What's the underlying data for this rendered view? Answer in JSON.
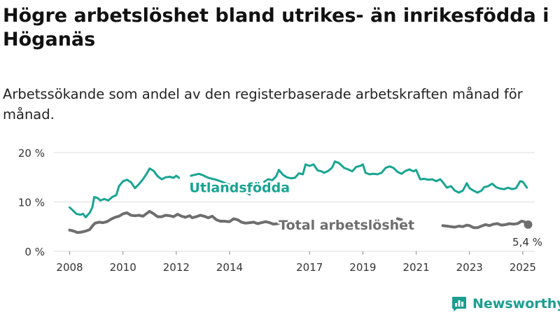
{
  "title": "Högre arbetslöshet bland utrikes- än inrikesfödda i Höganäs",
  "subtitle": "Arbetssökande som andel av den registerbaserade arbetskraften månad för månad.",
  "brand": "Newsworthy",
  "colors": {
    "foreign_born": "#19a493",
    "total": "#6e6e6e",
    "grid": "#dddddd",
    "text": "#333333",
    "brand": "#1b9e8f"
  },
  "chart_data": {
    "type": "line",
    "title": "Högre arbetslöshet bland utrikes- än inrikesfödda i Höganäs",
    "xlabel": "",
    "ylabel": "",
    "xlim": [
      2007.75,
      2025.45
    ],
    "ylim": [
      0,
      20
    ],
    "y_ticks": [
      {
        "value": 0,
        "label": "0 %"
      },
      {
        "value": 10,
        "label": "10 %"
      },
      {
        "value": 20,
        "label": "20 %"
      }
    ],
    "x_ticks": [
      {
        "value": 2008,
        "label": "2008"
      },
      {
        "value": 2010,
        "label": "2010"
      },
      {
        "value": 2012,
        "label": "2012"
      },
      {
        "value": 2014,
        "label": "2014"
      },
      {
        "value": 2017,
        "label": "2017"
      },
      {
        "value": 2019,
        "label": "2019"
      },
      {
        "value": 2021,
        "label": "2021"
      },
      {
        "value": 2023,
        "label": "2023"
      },
      {
        "value": 2025,
        "label": "2025"
      }
    ],
    "grid": true,
    "series": [
      {
        "name": "Utlandsfödda",
        "color": "#19a493",
        "points": [
          [
            2008.0,
            8.9
          ],
          [
            2008.1,
            8.4
          ],
          [
            2008.25,
            7.6
          ],
          [
            2008.4,
            7.4
          ],
          [
            2008.5,
            7.6
          ],
          [
            2008.6,
            6.9
          ],
          [
            2008.75,
            7.8
          ],
          [
            2008.85,
            8.9
          ],
          [
            2008.92,
            11.0
          ],
          [
            2009.05,
            10.8
          ],
          [
            2009.15,
            10.3
          ],
          [
            2009.3,
            10.6
          ],
          [
            2009.45,
            10.3
          ],
          [
            2009.6,
            11.0
          ],
          [
            2009.75,
            11.4
          ],
          [
            2009.85,
            13.2
          ],
          [
            2010.0,
            14.2
          ],
          [
            2010.15,
            14.5
          ],
          [
            2010.3,
            14.0
          ],
          [
            2010.45,
            12.8
          ],
          [
            2010.6,
            13.6
          ],
          [
            2010.75,
            14.6
          ],
          [
            2010.9,
            15.8
          ],
          [
            2011.0,
            16.8
          ],
          [
            2011.15,
            16.3
          ],
          [
            2011.3,
            15.2
          ],
          [
            2011.45,
            14.6
          ],
          [
            2011.6,
            15.0
          ],
          [
            2011.75,
            15.1
          ],
          [
            2011.9,
            14.9
          ],
          [
            2012.0,
            15.3
          ],
          [
            2012.1,
            14.9
          ],
          [
            2012.55,
            15.3
          ],
          [
            2012.7,
            15.5
          ],
          [
            2012.85,
            15.7
          ],
          [
            2013.0,
            15.4
          ],
          [
            2013.2,
            14.9
          ],
          [
            2013.35,
            14.7
          ],
          [
            2013.5,
            14.5
          ],
          [
            2013.65,
            14.2
          ],
          [
            2013.8,
            13.9
          ],
          [
            2014.0,
            13.5
          ],
          [
            2014.2,
            13.2
          ],
          [
            2014.35,
            12.7
          ],
          [
            2014.5,
            12.2
          ],
          [
            2014.65,
            11.9
          ],
          [
            2014.75,
            11.5
          ],
          [
            2015.3,
            14.1
          ],
          [
            2015.45,
            14.6
          ],
          [
            2015.6,
            14.4
          ],
          [
            2015.75,
            15.2
          ],
          [
            2015.85,
            16.5
          ],
          [
            2016.0,
            15.5
          ],
          [
            2016.15,
            15.0
          ],
          [
            2016.3,
            14.8
          ],
          [
            2016.45,
            14.9
          ],
          [
            2016.6,
            15.8
          ],
          [
            2016.75,
            15.6
          ],
          [
            2016.85,
            17.6
          ],
          [
            2017.0,
            17.3
          ],
          [
            2017.15,
            17.6
          ],
          [
            2017.3,
            16.4
          ],
          [
            2017.45,
            16.2
          ],
          [
            2017.55,
            15.9
          ],
          [
            2017.7,
            16.3
          ],
          [
            2017.85,
            17.0
          ],
          [
            2017.95,
            18.2
          ],
          [
            2018.1,
            17.9
          ],
          [
            2018.3,
            16.9
          ],
          [
            2018.45,
            16.6
          ],
          [
            2018.6,
            16.2
          ],
          [
            2018.75,
            17.1
          ],
          [
            2018.9,
            17.3
          ],
          [
            2019.0,
            17.6
          ],
          [
            2019.1,
            15.9
          ],
          [
            2019.25,
            15.6
          ],
          [
            2019.4,
            15.7
          ],
          [
            2019.55,
            15.6
          ],
          [
            2019.7,
            15.9
          ],
          [
            2019.85,
            16.9
          ],
          [
            2020.0,
            17.2
          ],
          [
            2020.15,
            16.9
          ],
          [
            2020.3,
            16.1
          ],
          [
            2020.45,
            15.7
          ],
          [
            2020.6,
            16.3
          ],
          [
            2020.75,
            16.6
          ],
          [
            2020.9,
            16.2
          ],
          [
            2021.0,
            16.5
          ],
          [
            2021.15,
            14.6
          ],
          [
            2021.3,
            14.7
          ],
          [
            2021.45,
            14.5
          ],
          [
            2021.6,
            14.6
          ],
          [
            2021.75,
            14.2
          ],
          [
            2021.9,
            14.6
          ],
          [
            2022.0,
            14.0
          ],
          [
            2022.15,
            12.9
          ],
          [
            2022.3,
            13.2
          ],
          [
            2022.45,
            12.3
          ],
          [
            2022.6,
            11.9
          ],
          [
            2022.75,
            12.3
          ],
          [
            2022.9,
            13.8
          ],
          [
            2023.0,
            12.8
          ],
          [
            2023.15,
            12.3
          ],
          [
            2023.3,
            11.9
          ],
          [
            2023.45,
            12.3
          ],
          [
            2023.55,
            13.0
          ],
          [
            2023.7,
            13.2
          ],
          [
            2023.85,
            13.7
          ],
          [
            2024.0,
            13.0
          ],
          [
            2024.15,
            12.7
          ],
          [
            2024.3,
            12.6
          ],
          [
            2024.45,
            12.9
          ],
          [
            2024.6,
            12.6
          ],
          [
            2024.75,
            12.8
          ],
          [
            2024.9,
            14.2
          ],
          [
            2025.0,
            14.1
          ],
          [
            2025.15,
            12.9
          ]
        ]
      },
      {
        "name": "Total arbetslöshet",
        "color": "#6e6e6e",
        "points": [
          [
            2008.0,
            4.3
          ],
          [
            2008.15,
            4.1
          ],
          [
            2008.3,
            3.8
          ],
          [
            2008.45,
            3.9
          ],
          [
            2008.6,
            4.1
          ],
          [
            2008.75,
            4.4
          ],
          [
            2008.85,
            5.1
          ],
          [
            2008.95,
            5.7
          ],
          [
            2009.1,
            5.9
          ],
          [
            2009.25,
            5.8
          ],
          [
            2009.4,
            6.0
          ],
          [
            2009.55,
            6.5
          ],
          [
            2009.7,
            6.9
          ],
          [
            2009.85,
            7.1
          ],
          [
            2010.0,
            7.6
          ],
          [
            2010.15,
            7.8
          ],
          [
            2010.3,
            7.3
          ],
          [
            2010.45,
            7.2
          ],
          [
            2010.6,
            7.3
          ],
          [
            2010.75,
            7.1
          ],
          [
            2010.9,
            7.7
          ],
          [
            2011.0,
            8.1
          ],
          [
            2011.15,
            7.6
          ],
          [
            2011.3,
            7.0
          ],
          [
            2011.45,
            7.0
          ],
          [
            2011.6,
            7.3
          ],
          [
            2011.75,
            7.2
          ],
          [
            2011.9,
            7.0
          ],
          [
            2012.05,
            7.5
          ],
          [
            2012.2,
            7.1
          ],
          [
            2012.35,
            6.9
          ],
          [
            2012.5,
            7.2
          ],
          [
            2012.6,
            6.8
          ],
          [
            2012.75,
            7.0
          ],
          [
            2012.9,
            7.3
          ],
          [
            2013.05,
            7.1
          ],
          [
            2013.2,
            6.8
          ],
          [
            2013.35,
            7.1
          ],
          [
            2013.5,
            6.4
          ],
          [
            2013.65,
            6.1
          ],
          [
            2013.8,
            6.1
          ],
          [
            2014.0,
            6.0
          ],
          [
            2014.15,
            6.6
          ],
          [
            2014.3,
            6.4
          ],
          [
            2014.45,
            5.9
          ],
          [
            2014.6,
            5.7
          ],
          [
            2014.75,
            5.8
          ],
          [
            2014.9,
            5.9
          ],
          [
            2015.05,
            5.6
          ],
          [
            2015.2,
            5.8
          ],
          [
            2015.35,
            6.0
          ],
          [
            2015.5,
            5.8
          ],
          [
            2015.65,
            5.5
          ],
          [
            2015.8,
            5.6
          ],
          [
            2015.95,
            5.9
          ],
          [
            2016.1,
            6.0
          ],
          [
            2016.25,
            5.7
          ],
          [
            2016.4,
            5.4
          ],
          [
            2016.55,
            5.6
          ],
          [
            2016.75,
            5.7
          ],
          [
            2020.3,
            6.6
          ],
          [
            2020.45,
            6.4
          ],
          [
            2022.0,
            5.2
          ],
          [
            2022.15,
            5.1
          ],
          [
            2022.3,
            5.0
          ],
          [
            2022.45,
            4.9
          ],
          [
            2022.6,
            5.1
          ],
          [
            2022.75,
            5.0
          ],
          [
            2022.9,
            5.3
          ],
          [
            2023.0,
            5.2
          ],
          [
            2023.15,
            4.8
          ],
          [
            2023.3,
            4.8
          ],
          [
            2023.45,
            5.1
          ],
          [
            2023.6,
            5.4
          ],
          [
            2023.75,
            5.2
          ],
          [
            2023.9,
            5.5
          ],
          [
            2024.05,
            5.6
          ],
          [
            2024.2,
            5.3
          ],
          [
            2024.35,
            5.4
          ],
          [
            2024.5,
            5.6
          ],
          [
            2024.65,
            5.5
          ],
          [
            2024.8,
            5.6
          ],
          [
            2024.95,
            6.1
          ],
          [
            2025.05,
            6.0
          ],
          [
            2025.2,
            5.4
          ]
        ]
      }
    ],
    "annotations": [
      {
        "text": "Utlandsfödda",
        "series": 0,
        "x": 2014.4,
        "y": 13.0
      },
      {
        "text": "Total arbetslöshet",
        "series": 1,
        "x": 2018.6,
        "y": 5.4
      },
      {
        "text": "5,4 %",
        "series": 1,
        "x": 2025.2,
        "y": 5.4
      }
    ],
    "end_point": {
      "series": 1,
      "x": 2025.2,
      "y": 5.4
    }
  }
}
